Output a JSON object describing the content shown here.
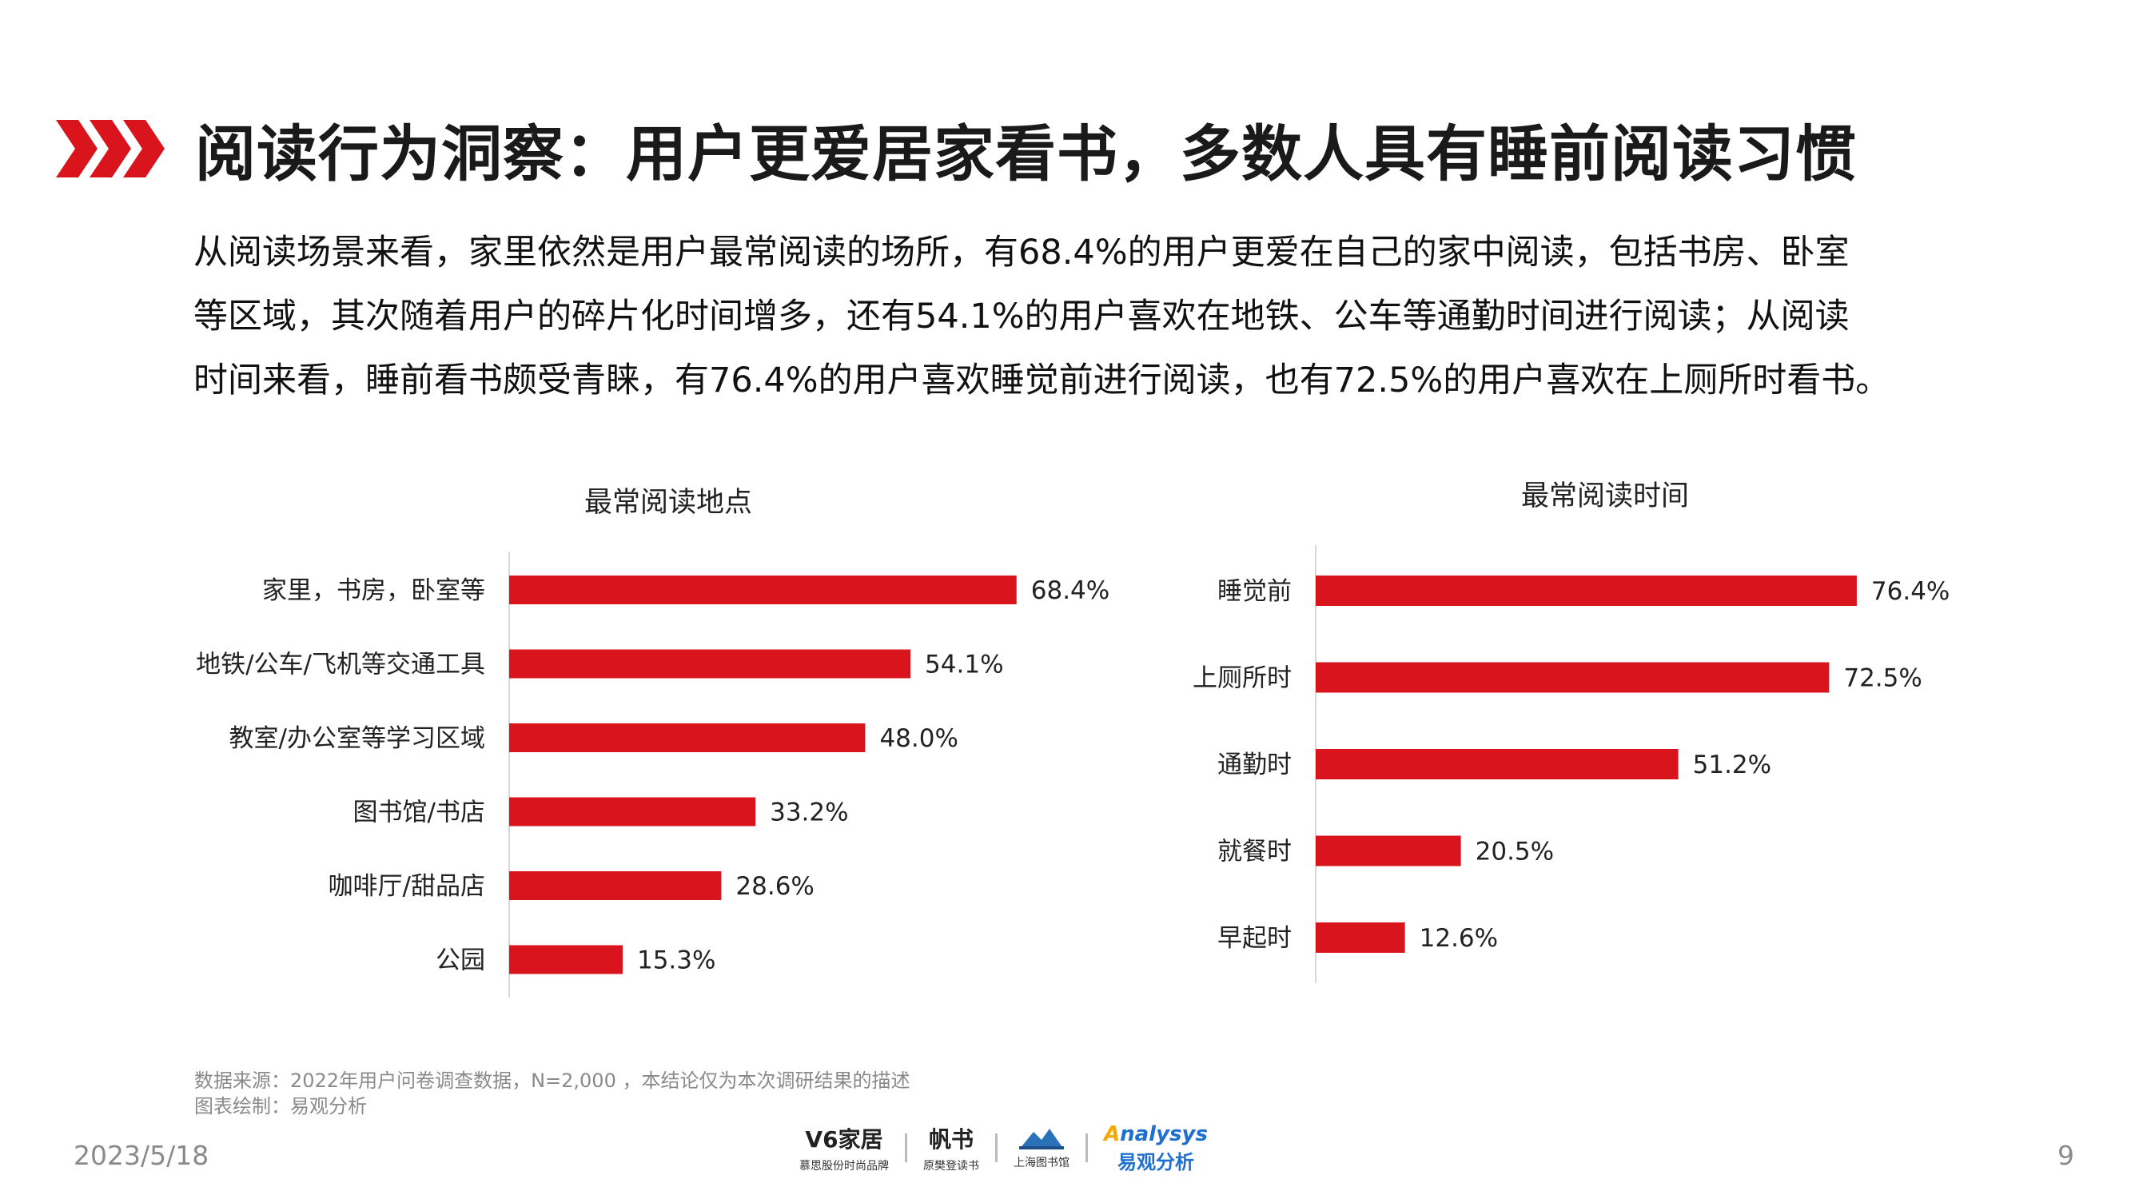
{
  "header": {
    "title": "阅读行为洞察：用户更爱居家看书，多数人具有睡前阅读习惯",
    "accent_color": "#d9141c",
    "icon": "triple-chevron-icon"
  },
  "intro": {
    "lines": [
      "从阅读场景来看，家里依然是用户最常阅读的场所，有68.4%的用户更爱在自己的家中阅读，包括书房、卧室",
      "等区域，其次随着用户的碎片化时间增多，还有54.1%的用户喜欢在地铁、公车等通勤时间进行阅读；从阅读",
      "时间来看，睡前看书颇受青睐，有76.4%的用户喜欢睡觉前进行阅读，也有72.5%的用户喜欢在上厕所时看书。"
    ]
  },
  "chart_data": [
    {
      "type": "bar",
      "orientation": "horizontal",
      "title": "最常阅读地点",
      "categories": [
        "家里，书房，卧室等",
        "地铁/公车/飞机等交通工具",
        "教室/办公室等学习区域",
        "图书馆/书店",
        "咖啡厅/甜品店",
        "公园"
      ],
      "values": [
        68.4,
        54.1,
        48.0,
        33.2,
        28.6,
        15.3
      ],
      "value_labels": [
        "68.4%",
        "54.1%",
        "48.0%",
        "33.2%",
        "28.6%",
        "15.3%"
      ],
      "unit": "%",
      "bar_color": "#d9141c",
      "grid": false
    },
    {
      "type": "bar",
      "orientation": "horizontal",
      "title": "最常阅读时间",
      "categories": [
        "睡觉前",
        "上厕所时",
        "通勤时",
        "就餐时",
        "早起时"
      ],
      "values": [
        76.4,
        72.5,
        51.2,
        20.5,
        12.6
      ],
      "value_labels": [
        "76.4%",
        "72.5%",
        "51.2%",
        "20.5%",
        "12.6%"
      ],
      "unit": "%",
      "bar_color": "#d9141c",
      "grid": false
    }
  ],
  "footer": {
    "source": "数据来源：2022年用户问卷调查数据，N=2,000 ，本结论仅为本次调研结果的描述",
    "drawn_by": "图表绘制：易观分析",
    "date": "2023/5/18",
    "page_number": "9",
    "logos": {
      "v6_main": "V6家居",
      "v6_sub": "慕思股份时尚品牌",
      "fanshu_main": "帆书",
      "fanshu_sub": "原樊登读书",
      "library_sub": "上海图书馆",
      "analysys_a": "A",
      "analysys_rest": "nalysys",
      "analysys_sub": "易观分析"
    }
  }
}
